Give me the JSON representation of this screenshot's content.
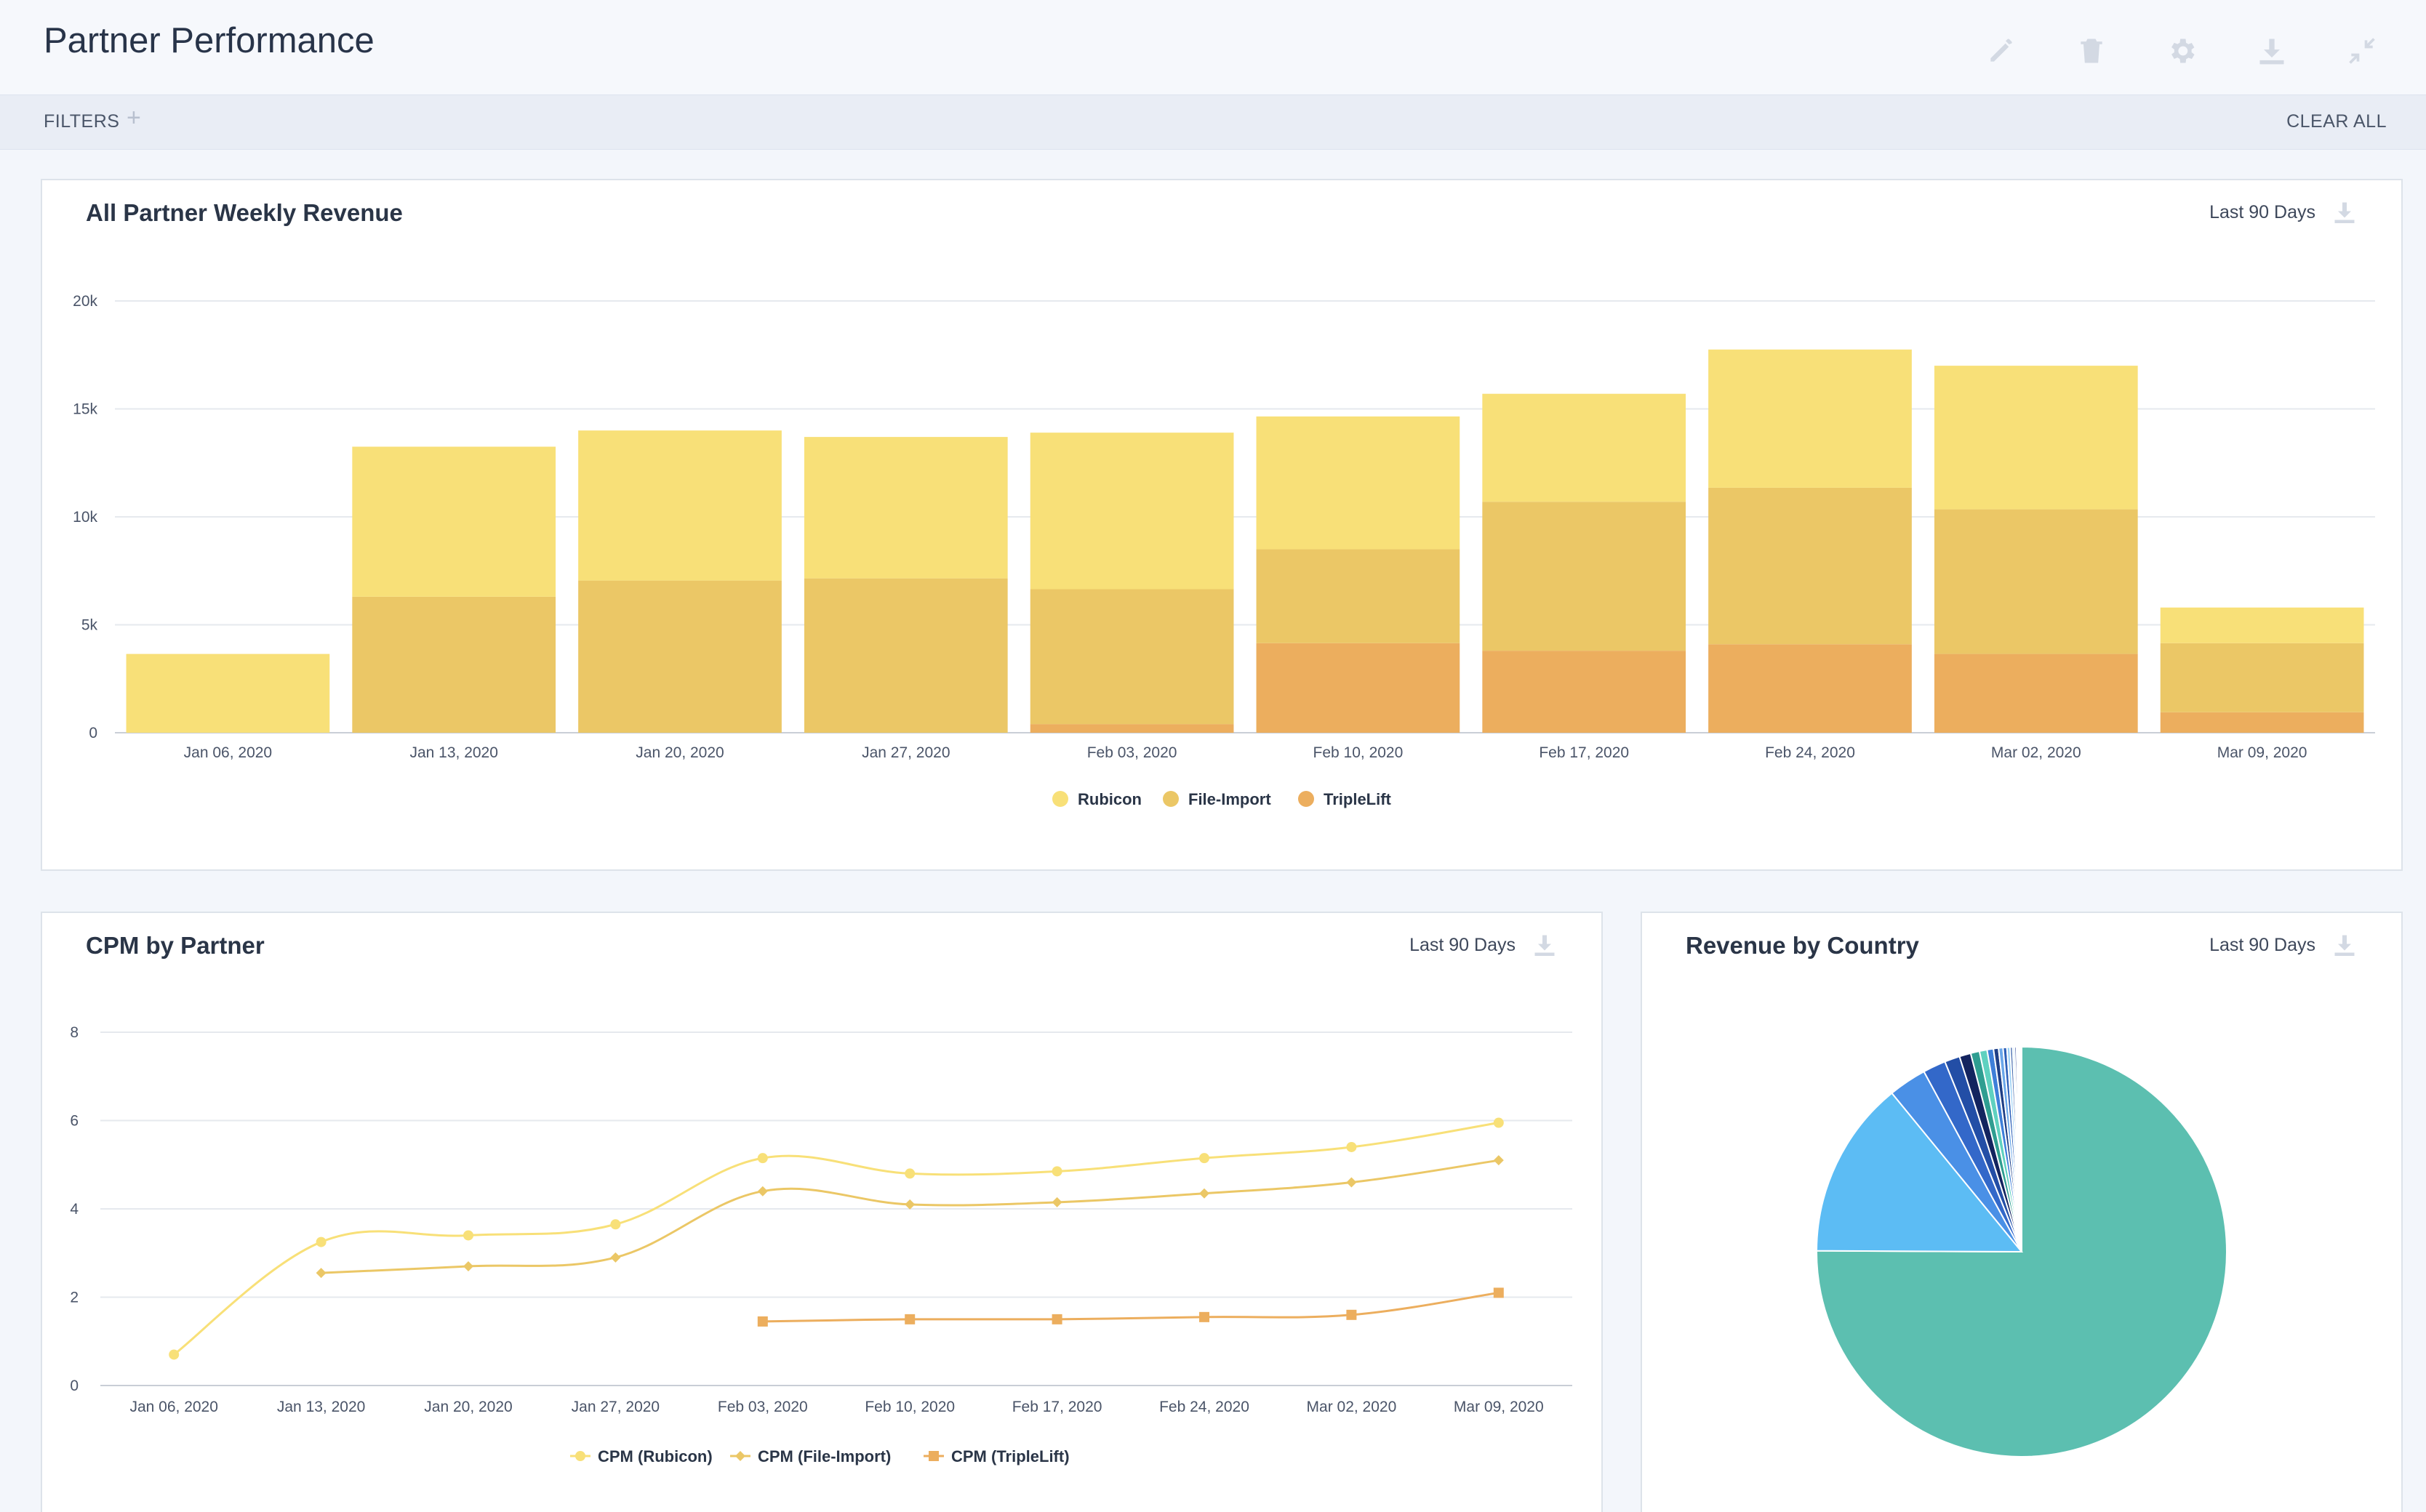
{
  "header": {
    "title": "Partner Performance",
    "icons": [
      "pencil-icon",
      "trash-icon",
      "gear-icon",
      "download-icon",
      "collapse-icon"
    ]
  },
  "filterbar": {
    "filters_label": "FILTERS",
    "add_label": "+",
    "clear_label": "CLEAR ALL"
  },
  "panels": {
    "weekly_revenue": {
      "title": "All Partner Weekly Revenue",
      "range": "Last 90 Days"
    },
    "cpm": {
      "title": "CPM by Partner",
      "range": "Last 90 Days"
    },
    "country": {
      "title": "Revenue by Country",
      "range": "Last 90 Days"
    }
  },
  "colors": {
    "rubicon": "#f8e078",
    "file_import": "#ebc766",
    "triplelift": "#ecae5e",
    "grid": "#e6e9ee",
    "axis": "#c9ced6"
  },
  "chart_data": [
    {
      "type": "bar",
      "stacked": true,
      "categories": [
        "Jan 06, 2020",
        "Jan 13, 2020",
        "Jan 20, 2020",
        "Jan 27, 2020",
        "Feb 03, 2020",
        "Feb 10, 2020",
        "Feb 17, 2020",
        "Feb 24, 2020",
        "Mar 02, 2020",
        "Mar 09, 2020"
      ],
      "series": [
        {
          "name": "TripleLift",
          "color": "#ecae5e",
          "values": [
            0,
            0,
            0,
            0,
            400,
            4150,
            3800,
            4100,
            3650,
            950
          ]
        },
        {
          "name": "File-Import",
          "color": "#ebc766",
          "values": [
            0,
            6300,
            7050,
            7150,
            6250,
            4350,
            6900,
            7250,
            6700,
            3200
          ]
        },
        {
          "name": "Rubicon",
          "color": "#f8e078",
          "values": [
            3650,
            6950,
            6950,
            6550,
            7250,
            6150,
            5000,
            6400,
            6650,
            1650
          ]
        }
      ],
      "legend_order": [
        "Rubicon",
        "File-Import",
        "TripleLift"
      ],
      "yticks": [
        "0",
        "5k",
        "10k",
        "15k",
        "20k"
      ],
      "ylim": [
        0,
        20000
      ],
      "grid": true,
      "legend": "bottom"
    },
    {
      "type": "line",
      "categories": [
        "Jan 06, 2020",
        "Jan 13, 2020",
        "Jan 20, 2020",
        "Jan 27, 2020",
        "Feb 03, 2020",
        "Feb 10, 2020",
        "Feb 17, 2020",
        "Feb 24, 2020",
        "Mar 02, 2020",
        "Mar 09, 2020"
      ],
      "series": [
        {
          "name": "CPM (Rubicon)",
          "color": "#f8e078",
          "marker": "circle",
          "values": [
            0.7,
            3.25,
            3.4,
            3.65,
            5.15,
            4.8,
            4.85,
            5.15,
            5.4,
            5.95
          ]
        },
        {
          "name": "CPM (File-Import)",
          "color": "#ebc766",
          "marker": "diamond",
          "values": [
            null,
            2.55,
            2.7,
            2.9,
            4.4,
            4.1,
            4.15,
            4.35,
            4.6,
            5.1
          ]
        },
        {
          "name": "CPM (TripleLift)",
          "color": "#ecae5e",
          "marker": "square",
          "values": [
            null,
            null,
            null,
            null,
            1.45,
            1.5,
            1.5,
            1.55,
            1.6,
            2.1
          ]
        }
      ],
      "yticks": [
        "0",
        "2",
        "4",
        "6",
        "8"
      ],
      "ylim": [
        0,
        8
      ],
      "grid": true,
      "legend": "bottom"
    },
    {
      "type": "pie",
      "slices": [
        {
          "value": 75.0,
          "color": "#5cbfb0"
        },
        {
          "value": 14.0,
          "color": "#5cbcf4"
        },
        {
          "value": 3.0,
          "color": "#4a90e6"
        },
        {
          "value": 1.8,
          "color": "#3368c9"
        },
        {
          "value": 1.2,
          "color": "#234ea6"
        },
        {
          "value": 0.9,
          "color": "#13245f"
        },
        {
          "value": 0.7,
          "color": "#2f9e91"
        },
        {
          "value": 0.6,
          "color": "#5fd1c0"
        },
        {
          "value": 0.5,
          "color": "#3e7fd9"
        },
        {
          "value": 0.4,
          "color": "#1f3f86"
        },
        {
          "value": 0.35,
          "color": "#6aa7ea"
        },
        {
          "value": 0.3,
          "color": "#2c5fb8"
        },
        {
          "value": 0.25,
          "color": "#9ad0f5"
        },
        {
          "value": 0.2,
          "color": "#4b6fb0"
        },
        {
          "value": 0.15,
          "color": "#bfe1f8"
        },
        {
          "value": 0.15,
          "color": "#3a4f9e"
        },
        {
          "value": 0.1,
          "color": "#8fb3e8"
        },
        {
          "value": 0.1,
          "color": "#d5e6f7"
        },
        {
          "value": 0.1,
          "color": "#6b84c6"
        },
        {
          "value": 0.1,
          "color": "#a8bde6"
        }
      ]
    }
  ]
}
